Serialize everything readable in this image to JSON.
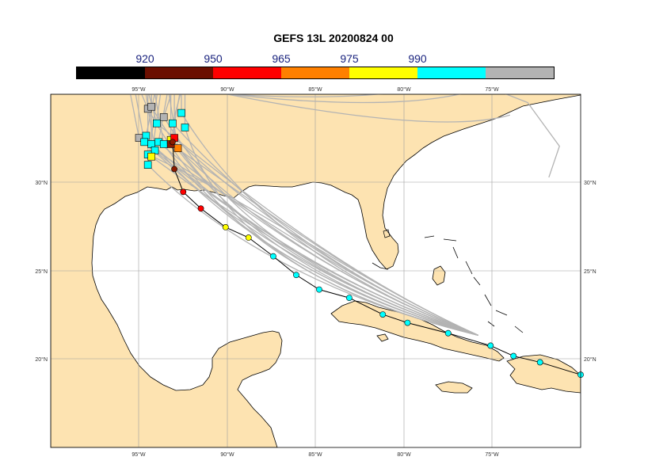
{
  "title": "GEFS 13L 20200824 00",
  "colorbar": {
    "labels": [
      "920",
      "950",
      "965",
      "975",
      "990"
    ],
    "colors": [
      "#000000",
      "#6b0e00",
      "#ff0000",
      "#ff8000",
      "#ffff00",
      "#00ffff",
      "#b3b3b3"
    ]
  },
  "map": {
    "lon_range": [
      -100,
      -70
    ],
    "lat_range": [
      15,
      32
    ],
    "land_color": "#fde3b1",
    "ocean_color": "#ffffff",
    "lon_ticks": [
      "95°W",
      "90°W",
      "85°W",
      "80°W",
      "75°W"
    ],
    "lat_ticks": [
      "30°N",
      "25°N",
      "20°N"
    ]
  },
  "chart_data": {
    "type": "scatter",
    "title": "GEFS 13L 20200824 00",
    "pressure_bins_hPa": [
      920,
      950,
      965,
      975,
      990
    ],
    "mean_track": [
      {
        "lon": -70.0,
        "lat": 18.5,
        "color": "cyan"
      },
      {
        "lon": -72.3,
        "lat": 19.1,
        "color": "cyan"
      },
      {
        "lon": -73.8,
        "lat": 19.4,
        "color": "cyan"
      },
      {
        "lon": -75.1,
        "lat": 19.9,
        "color": "cyan"
      },
      {
        "lon": -77.5,
        "lat": 20.5,
        "color": "cyan"
      },
      {
        "lon": -79.8,
        "lat": 21.0,
        "color": "cyan"
      },
      {
        "lon": -81.2,
        "lat": 21.4,
        "color": "cyan"
      },
      {
        "lon": -83.1,
        "lat": 22.2,
        "color": "cyan"
      },
      {
        "lon": -84.8,
        "lat": 22.6,
        "color": "cyan"
      },
      {
        "lon": -86.1,
        "lat": 23.3,
        "color": "cyan"
      },
      {
        "lon": -87.4,
        "lat": 24.2,
        "color": "cyan"
      },
      {
        "lon": -88.8,
        "lat": 25.1,
        "color": "yellow"
      },
      {
        "lon": -90.1,
        "lat": 25.6,
        "color": "yellow"
      },
      {
        "lon": -91.5,
        "lat": 26.5,
        "color": "red"
      },
      {
        "lon": -92.5,
        "lat": 27.3,
        "color": "red"
      },
      {
        "lon": -93.0,
        "lat": 28.4,
        "color": "darkred"
      },
      {
        "lon": -93.1,
        "lat": 29.7,
        "color": "darkred"
      }
    ],
    "landfall_squares": [
      {
        "lon": -94.5,
        "lat": 31.3,
        "color": "gray"
      },
      {
        "lon": -94.3,
        "lat": 31.4,
        "color": "gray"
      },
      {
        "lon": -93.6,
        "lat": 30.9,
        "color": "gray"
      },
      {
        "lon": -95.0,
        "lat": 29.9,
        "color": "gray"
      },
      {
        "lon": -92.6,
        "lat": 31.1,
        "color": "cyan"
      },
      {
        "lon": -93.1,
        "lat": 30.6,
        "color": "cyan"
      },
      {
        "lon": -94.0,
        "lat": 30.6,
        "color": "cyan"
      },
      {
        "lon": -92.4,
        "lat": 30.4,
        "color": "cyan"
      },
      {
        "lon": -94.6,
        "lat": 30.0,
        "color": "cyan"
      },
      {
        "lon": -94.7,
        "lat": 29.7,
        "color": "cyan"
      },
      {
        "lon": -94.3,
        "lat": 29.6,
        "color": "cyan"
      },
      {
        "lon": -93.9,
        "lat": 29.7,
        "color": "cyan"
      },
      {
        "lon": -94.1,
        "lat": 29.3,
        "color": "cyan"
      },
      {
        "lon": -94.5,
        "lat": 29.1,
        "color": "cyan"
      },
      {
        "lon": -94.5,
        "lat": 28.6,
        "color": "cyan"
      },
      {
        "lon": -93.6,
        "lat": 29.6,
        "color": "cyan"
      },
      {
        "lon": -93.2,
        "lat": 29.8,
        "color": "yellow"
      },
      {
        "lon": -94.3,
        "lat": 29.0,
        "color": "yellow"
      },
      {
        "lon": -92.8,
        "lat": 29.4,
        "color": "orange"
      },
      {
        "lon": -93.0,
        "lat": 29.9,
        "color": "red"
      },
      {
        "lon": -93.2,
        "lat": 29.6,
        "color": "darkred"
      }
    ],
    "ensemble_tracks_note_landfall_region": "Southwest Louisiana / Upper Texas coast"
  }
}
